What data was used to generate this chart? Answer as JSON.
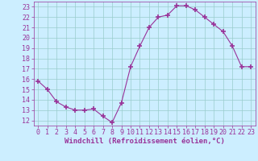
{
  "x": [
    0,
    1,
    2,
    3,
    4,
    5,
    6,
    7,
    8,
    9,
    10,
    11,
    12,
    13,
    14,
    15,
    16,
    17,
    18,
    19,
    20,
    21,
    22,
    23
  ],
  "y": [
    15.8,
    15.0,
    13.8,
    13.3,
    13.0,
    13.0,
    13.1,
    12.4,
    11.8,
    13.7,
    17.2,
    19.2,
    21.0,
    22.0,
    22.2,
    23.1,
    23.1,
    22.7,
    22.0,
    21.3,
    20.6,
    19.2,
    17.2,
    17.2
  ],
  "xlim": [
    -0.5,
    23.5
  ],
  "ylim": [
    11.5,
    23.5
  ],
  "yticks": [
    12,
    13,
    14,
    15,
    16,
    17,
    18,
    19,
    20,
    21,
    22,
    23
  ],
  "xticks": [
    0,
    1,
    2,
    3,
    4,
    5,
    6,
    7,
    8,
    9,
    10,
    11,
    12,
    13,
    14,
    15,
    16,
    17,
    18,
    19,
    20,
    21,
    22,
    23
  ],
  "line_color": "#993399",
  "marker": "+",
  "marker_size": 4,
  "bg_color": "#cceeff",
  "grid_color": "#99cccc",
  "xlabel": "Windchill (Refroidissement éolien,°C)",
  "xlabel_color": "#993399",
  "tick_color": "#993399",
  "label_fontsize": 6.5,
  "tick_fontsize": 6.0
}
